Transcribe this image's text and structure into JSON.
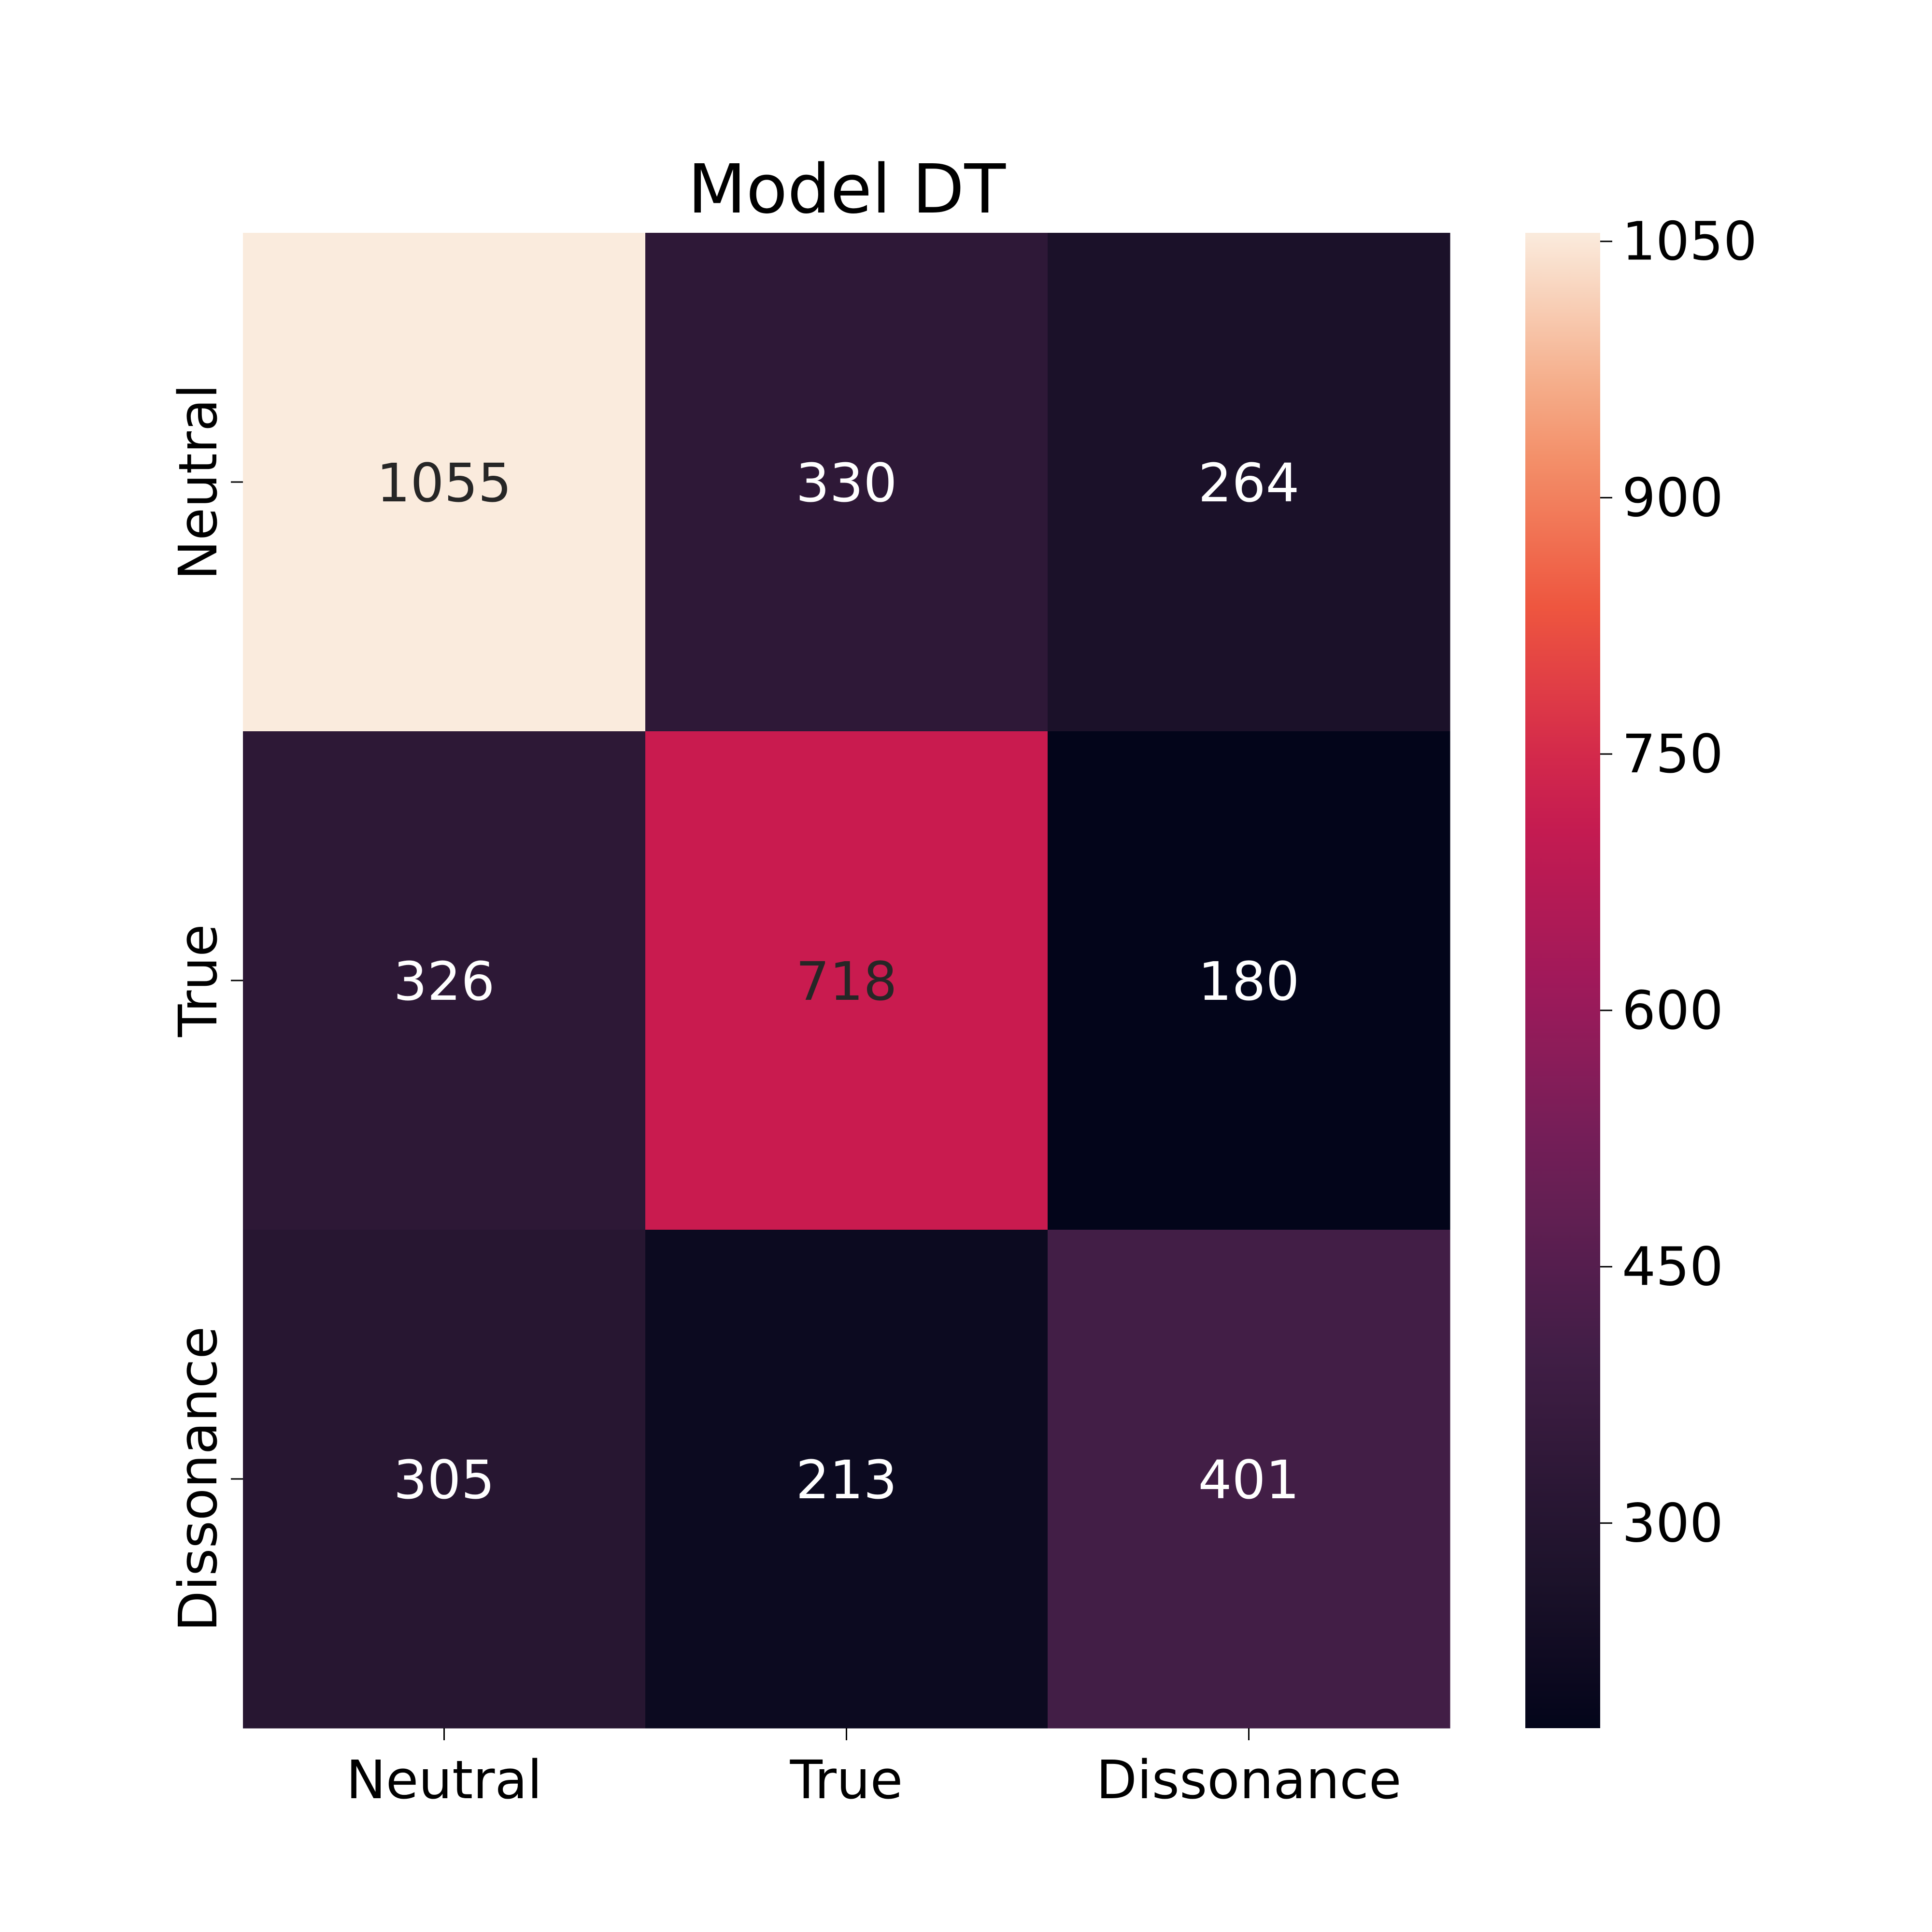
{
  "chart_data": {
    "type": "heatmap",
    "title": "Model DT",
    "x_categories": [
      "Neutral",
      "True",
      "Dissonance"
    ],
    "y_categories": [
      "Neutral",
      "True",
      "Dissonance"
    ],
    "values": [
      [
        1055,
        330,
        264
      ],
      [
        326,
        718,
        180
      ],
      [
        305,
        213,
        401
      ]
    ],
    "colorbar": {
      "ticks": [
        "1050",
        "900",
        "750",
        "600",
        "450",
        "300"
      ],
      "tick_values": [
        1050,
        900,
        750,
        600,
        450,
        300
      ],
      "range": [
        180,
        1055
      ],
      "colormap": "rocket"
    },
    "cell_label_colors": {
      "light_text": "#ffffff",
      "dark_text": "#262626"
    }
  }
}
